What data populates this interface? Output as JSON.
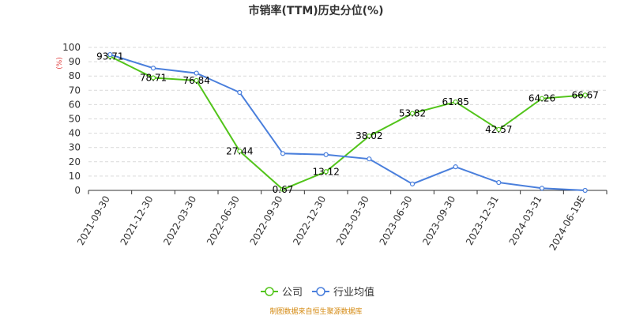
{
  "chart_data": {
    "type": "line",
    "title": "市销率(TTM)历史分位(%)",
    "unit": "(%)",
    "categories": [
      "2021-09-30",
      "2021-12-30",
      "2022-03-30",
      "2022-06-30",
      "2022-09-30",
      "2022-12-30",
      "2023-03-30",
      "2023-06-30",
      "2023-09-30",
      "2023-12-31",
      "2024-03-31",
      "2024-06-19E"
    ],
    "ylim": [
      0,
      100
    ],
    "yticks": [
      "0",
      "10",
      "20",
      "30",
      "40",
      "50",
      "60",
      "70",
      "80",
      "90",
      "100"
    ],
    "grid": true,
    "legend_position": "bottom",
    "series": [
      {
        "name": "公司",
        "color": "#52c41a",
        "values": [
          93.71,
          78.71,
          76.84,
          27.44,
          0.67,
          13.12,
          38.02,
          53.82,
          61.85,
          42.57,
          64.26,
          66.67
        ],
        "labels": [
          "93.71",
          "78.71",
          "76.84",
          "27.44",
          "0.67",
          "13.12",
          "38.02",
          "53.82",
          "61.85",
          "42.57",
          "64.26",
          "66.67"
        ]
      },
      {
        "name": "行业均值",
        "color": "#4a7fdc",
        "values": [
          95,
          85.5,
          82,
          68.5,
          25.8,
          25,
          22,
          4.5,
          16.5,
          5.5,
          1.5,
          0
        ]
      }
    ],
    "source": "制图数据来自恒生聚源数据库",
    "unit_color": "#e03b3b",
    "source_color": "#d4880f"
  }
}
